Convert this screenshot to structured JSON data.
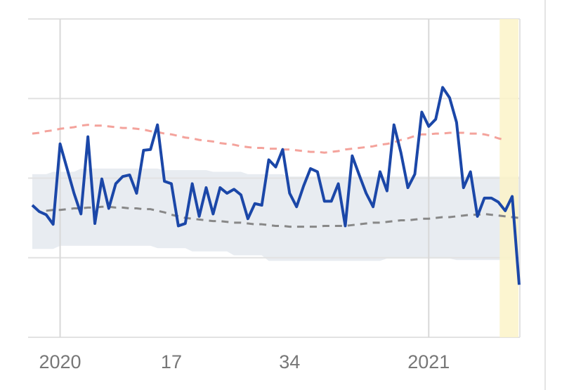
{
  "chart_data": {
    "type": "line",
    "categories": [
      null,
      null,
      null,
      null,
      "2020",
      null,
      null,
      null,
      null,
      null,
      null,
      null,
      null,
      null,
      null,
      null,
      null,
      null,
      null,
      null,
      "17",
      null,
      null,
      null,
      null,
      null,
      null,
      null,
      null,
      null,
      null,
      null,
      null,
      null,
      null,
      null,
      null,
      "34",
      null,
      null,
      null,
      null,
      null,
      null,
      null,
      null,
      null,
      null,
      null,
      null,
      null,
      null,
      null,
      null,
      null,
      null,
      null,
      "2021",
      null,
      null,
      null,
      null,
      null,
      null,
      null,
      null,
      null,
      null,
      null,
      null,
      null
    ],
    "xlim": [
      -0.6,
      70.1
    ],
    "ylim": [
      0,
      4
    ],
    "yticks": [
      0,
      1,
      2,
      3,
      4
    ],
    "grid": true,
    "xgrid": [
      4,
      57
    ],
    "highlight": {
      "from": 67.2,
      "to": 69.9,
      "color": "#fbf3c8"
    },
    "band": {
      "color": "#e8ecf1",
      "upper": [
        2.05,
        2.05,
        2.05,
        2.08,
        2.08,
        2.08,
        2.08,
        2.12,
        2.12,
        2.12,
        2.12,
        2.12,
        2.12,
        2.12,
        2.12,
        2.12,
        2.12,
        2.12,
        2.12,
        2.1,
        2.1,
        2.1,
        2.1,
        2.1,
        2.1,
        2.1,
        2.08,
        2.08,
        2.08,
        2.08,
        2.08,
        2.05,
        2.05,
        2.05,
        2.05,
        2.05,
        2.05,
        2.02,
        2.02,
        2.02,
        2.02,
        2.02,
        2.02,
        2.02,
        2.02,
        2.02,
        2.02,
        2.02,
        2.02,
        2.02,
        2.02,
        2.02,
        2.02,
        2.02,
        2.02,
        2.02,
        2.02,
        2.02,
        2.02,
        2.02,
        2.02,
        2.02,
        2.02,
        2.02,
        2.02,
        2.02,
        2.02,
        2.02,
        2.02,
        2.02,
        2.02
      ],
      "lower": [
        1.11,
        1.11,
        1.11,
        1.11,
        1.15,
        1.15,
        1.15,
        1.15,
        1.15,
        1.15,
        1.15,
        1.15,
        1.15,
        1.15,
        1.15,
        1.15,
        1.15,
        1.15,
        1.12,
        1.12,
        1.12,
        1.12,
        1.12,
        1.08,
        1.08,
        1.08,
        1.08,
        1.08,
        1.08,
        1.03,
        1.03,
        1.03,
        1.03,
        1.03,
        0.96,
        0.96,
        0.96,
        0.96,
        0.96,
        0.96,
        0.96,
        0.96,
        0.96,
        0.96,
        0.96,
        0.96,
        0.96,
        0.96,
        0.96,
        0.96,
        0.96,
        0.99,
        0.99,
        0.99,
        0.99,
        0.99,
        0.99,
        0.99,
        0.99,
        0.99,
        0.99,
        0.97,
        0.97,
        0.97,
        0.97,
        0.97,
        0.97,
        0.97,
        0.97,
        0.97,
        0.97
      ]
    },
    "series": [
      {
        "color": "#f4a39c",
        "dash": true,
        "width": 3,
        "values": [
          2.56,
          2.57,
          2.59,
          2.6,
          2.62,
          2.63,
          2.64,
          2.66,
          2.67,
          2.66,
          2.66,
          2.65,
          2.64,
          2.63,
          2.63,
          2.62,
          2.61,
          2.59,
          2.58,
          2.56,
          2.55,
          2.53,
          2.51,
          2.5,
          2.48,
          2.47,
          2.46,
          2.44,
          2.43,
          2.42,
          2.4,
          2.39,
          2.38,
          2.38,
          2.37,
          2.37,
          2.36,
          2.36,
          2.35,
          2.34,
          2.33,
          2.33,
          2.32,
          2.33,
          2.34,
          2.36,
          2.37,
          2.38,
          2.39,
          2.4,
          2.42,
          2.43,
          2.45,
          2.48,
          2.5,
          2.53,
          2.55,
          2.55,
          2.56,
          2.56,
          2.57,
          2.57,
          2.57,
          2.56,
          2.56,
          2.55,
          2.53,
          2.5,
          2.48,
          null,
          null
        ]
      },
      {
        "color": "#888888",
        "dash": true,
        "width": 3,
        "values": [
          null,
          null,
          1.59,
          1.6,
          1.6,
          1.61,
          1.62,
          1.62,
          1.63,
          1.63,
          1.64,
          1.64,
          1.63,
          1.63,
          1.62,
          1.62,
          1.61,
          1.61,
          1.59,
          1.57,
          1.54,
          1.52,
          1.5,
          1.49,
          1.48,
          1.47,
          1.46,
          1.46,
          1.45,
          1.44,
          1.44,
          1.43,
          1.42,
          1.42,
          1.41,
          1.4,
          1.4,
          1.39,
          1.39,
          1.39,
          1.39,
          1.39,
          1.4,
          1.4,
          1.4,
          1.4,
          1.41,
          1.42,
          1.43,
          1.44,
          1.44,
          1.45,
          1.46,
          1.47,
          1.47,
          1.48,
          1.49,
          1.49,
          1.5,
          1.51,
          1.51,
          1.52,
          1.53,
          1.54,
          1.54,
          1.55,
          1.54,
          1.53,
          1.52,
          1.51,
          1.5
        ]
      },
      {
        "color": "#1b47a8",
        "dash": false,
        "width": 4,
        "values": [
          1.66,
          1.58,
          1.54,
          1.42,
          2.43,
          2.12,
          1.81,
          1.55,
          2.52,
          1.43,
          1.99,
          1.62,
          1.93,
          2.02,
          2.04,
          1.81,
          2.35,
          2.36,
          2.67,
          1.96,
          1.93,
          1.4,
          1.43,
          1.93,
          1.52,
          1.88,
          1.55,
          1.88,
          1.81,
          1.86,
          1.79,
          1.49,
          1.68,
          1.66,
          2.23,
          2.14,
          2.36,
          1.81,
          1.64,
          1.9,
          2.12,
          2.08,
          1.71,
          1.71,
          1.93,
          1.4,
          2.28,
          2.04,
          1.81,
          1.64,
          2.08,
          1.84,
          2.67,
          2.32,
          1.88,
          2.05,
          2.83,
          2.65,
          2.74,
          3.14,
          3.01,
          2.7,
          1.88,
          2.08,
          1.52,
          1.75,
          1.75,
          1.7,
          1.59,
          1.77,
          0.66
        ]
      }
    ]
  }
}
